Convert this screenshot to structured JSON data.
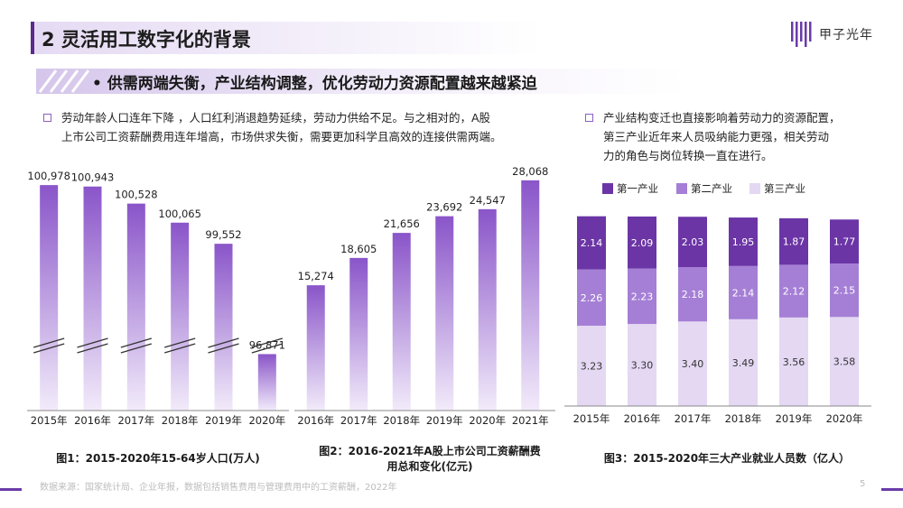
{
  "page": {
    "title": "2 灵活用工数字化的背景",
    "logo_text": "甲子光年",
    "headline": "• 供需两端失衡，产业结构调整，优化劳动力资源配置越来越紧迫",
    "page_number": "5",
    "source": "数据来源：国家统计局、企业年报，数据包括销售费用与管理费用中的工资薪酬，2022年"
  },
  "colors": {
    "primary": "#6a3aa8",
    "bar_gradient_top": "#8a55c9",
    "bar_gradient_bottom": "#f2ebfa",
    "industry1": "#6b35a6",
    "industry2": "#a57fd6",
    "industry3": "#e4d8f3"
  },
  "paragraphs": {
    "left": [
      "劳动年龄人口连年下降 ，人口红利消退趋势延续，劳动力供给不足。与之相对的，A股",
      "上市公司工资薪酬费用连年增高，市场供求失衡，需要更加科学且高效的连接供需两端。"
    ],
    "right": [
      "产业结构变迁也直接影响着劳动力的资源配置，",
      "第三产业近年来人员吸纳能力更强，相关劳动",
      "力的角色与岗位转换一直在进行。"
    ]
  },
  "captions": {
    "chart1": "图1：2015-2020年15-64岁人口(万人)",
    "chart2": [
      "图2：2016-2021年A股上市公司工资薪酬费",
      "用总和变化(亿元)"
    ],
    "chart3": "图3：2015-2020年三大产业就业人员数（亿人）"
  },
  "chart_data": [
    {
      "type": "bar",
      "categories": [
        "2015年",
        "2016年",
        "2017年",
        "2018年",
        "2019年",
        "2020年"
      ],
      "values": [
        100978,
        100943,
        100528,
        100065,
        99552,
        96871
      ],
      "value_labels": [
        "100,978",
        "100,943",
        "100,528",
        "100,065",
        "99,552",
        "96,871"
      ],
      "title": "图1：2015-2020年15-64岁人口(万人)",
      "axis_break": true,
      "ylim": [
        95500,
        101200
      ]
    },
    {
      "type": "bar",
      "categories": [
        "2016年",
        "2017年",
        "2018年",
        "2019年",
        "2020年",
        "2021年"
      ],
      "values": [
        15274,
        18605,
        21656,
        23692,
        24547,
        28068
      ],
      "value_labels": [
        "15,274",
        "18,605",
        "21,656",
        "23,692",
        "24,547",
        "28,068"
      ],
      "title": "图2：2016-2021年A股上市公司工资薪酬费用总和变化(亿元)",
      "ylim": [
        0,
        28600
      ]
    },
    {
      "type": "bar",
      "stacked": true,
      "categories": [
        "2015年",
        "2016年",
        "2017年",
        "2018年",
        "2019年",
        "2020年"
      ],
      "series": [
        {
          "name": "第一产业",
          "values": [
            2.14,
            2.09,
            2.03,
            1.95,
            1.87,
            1.77
          ],
          "labels": [
            "2.14",
            "2.09",
            "2.03",
            "1.95",
            "1.87",
            "1.77"
          ]
        },
        {
          "name": "第二产业",
          "values": [
            2.26,
            2.23,
            2.18,
            2.14,
            2.12,
            2.15
          ],
          "labels": [
            "2.26",
            "2.23",
            "2.18",
            "2.14",
            "2.12",
            "2.15"
          ]
        },
        {
          "name": "第三产业",
          "values": [
            3.23,
            3.3,
            3.4,
            3.49,
            3.56,
            3.58
          ],
          "labels": [
            "3.23",
            "3.30",
            "3.40",
            "3.49",
            "3.56",
            "3.58"
          ]
        }
      ],
      "title": "图3：2015-2020年三大产业就业人员数（亿人）",
      "legend": "top"
    }
  ]
}
